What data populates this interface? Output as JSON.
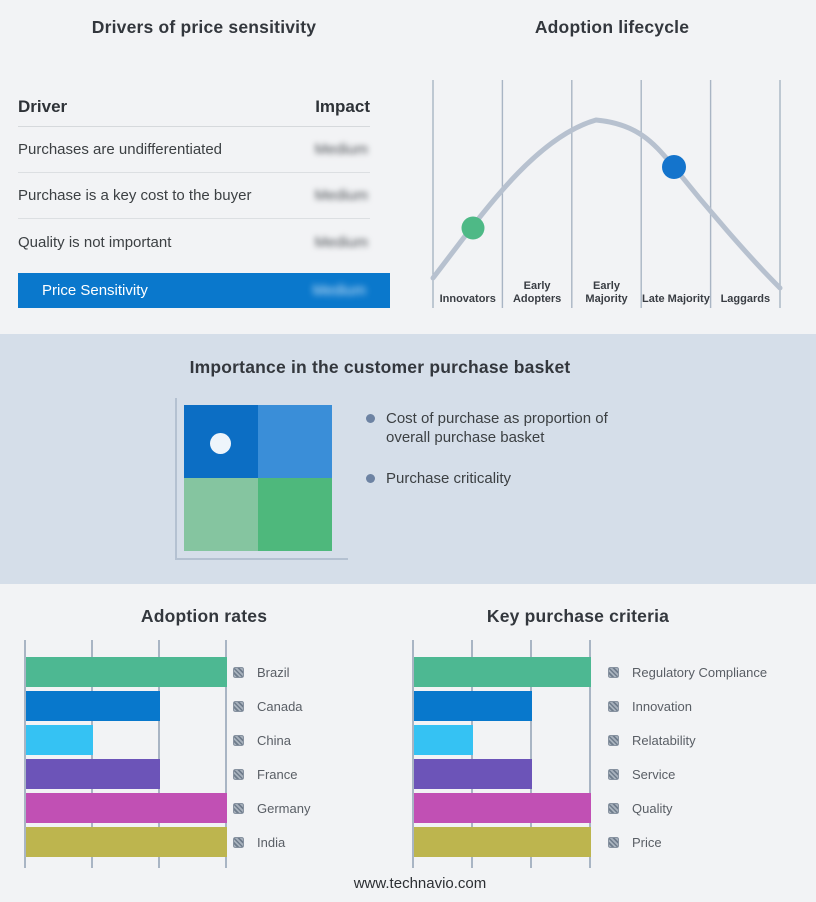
{
  "page": {
    "background": "#f2f3f5",
    "band_background": "#d5dee9",
    "gridline_color": "#a9b5c4",
    "website": "www.technavio.com"
  },
  "drivers_panel": {
    "title": "Drivers of price sensitivity",
    "columns": {
      "driver": "Driver",
      "impact": "Impact"
    },
    "rows": [
      {
        "driver": "Purchases are undifferentiated",
        "impact": "Medium",
        "impact_blurred": true
      },
      {
        "driver": "Purchase is a key cost to the buyer",
        "impact": "Medium",
        "impact_blurred": true
      },
      {
        "driver": "Quality is not important",
        "impact": "Medium",
        "impact_blurred": true
      }
    ],
    "highlight_row": {
      "driver": "Price Sensitivity",
      "impact": "Medium",
      "impact_blurred": true
    },
    "highlight_color": "#0a78cc"
  },
  "basket_panel": {
    "title": "Importance in the customer purchase basket",
    "bullets": [
      "Cost of purchase as proportion of overall purchase basket",
      "Purchase criticality"
    ],
    "quadrant_colors": {
      "top_left": "#0c6ec4",
      "top_right": "#3a8ed8",
      "bottom_left": "#85c5a0",
      "bottom_right": "#4eb87c"
    },
    "dot_color": "#eef5fb"
  },
  "chart_data": [
    {
      "type": "line",
      "title": "Adoption lifecycle",
      "curve_shape": "bell",
      "curve_color": "#b7c1cf",
      "categories": [
        "Innovators",
        "Early Adopters",
        "Early Majority",
        "Late Majority",
        "Laggards"
      ],
      "grid": "vertical-only",
      "legend": false,
      "markers": [
        {
          "stage": "Innovators",
          "position": "rising-slope",
          "color": "#4eb986"
        },
        {
          "stage": "Late Majority",
          "position": "falling-slope",
          "color": "#1474cc"
        }
      ]
    },
    {
      "type": "bar",
      "title": "Adoption rates",
      "orientation": "horizontal",
      "categories": [
        "Brazil",
        "Canada",
        "China",
        "France",
        "Germany",
        "India"
      ],
      "values": [
        100,
        66.7,
        33.3,
        66.7,
        100,
        100
      ],
      "xlim": [
        0,
        100
      ],
      "gridlines_at": [
        0,
        33.3,
        66.7,
        100
      ],
      "colors": [
        "#4db892",
        "#0878cc",
        "#35c2f3",
        "#6c54b8",
        "#c150b4",
        "#bdb54e"
      ],
      "legend_position": "right",
      "value_labels": false
    },
    {
      "type": "bar",
      "title": "Key purchase criteria",
      "orientation": "horizontal",
      "categories": [
        "Regulatory Compliance",
        "Innovation",
        "Relatability",
        "Service",
        "Quality",
        "Price"
      ],
      "values": [
        100,
        66.7,
        33.3,
        66.7,
        100,
        100
      ],
      "xlim": [
        0,
        100
      ],
      "gridlines_at": [
        0,
        33.3,
        66.7,
        100
      ],
      "colors": [
        "#4db892",
        "#0878cc",
        "#35c2f3",
        "#6c54b8",
        "#c150b4",
        "#bdb54e"
      ],
      "legend_position": "right",
      "value_labels": false
    }
  ]
}
